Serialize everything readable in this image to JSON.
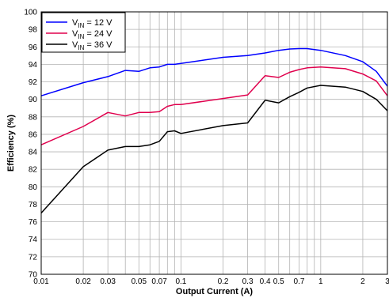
{
  "chart_data": {
    "type": "line",
    "xscale": "log",
    "xlabel": "Output Current (A)",
    "ylabel": "Efficiency (%)",
    "xlim": [
      0.01,
      3
    ],
    "ylim": [
      70,
      100
    ],
    "grid": true,
    "legend_position": "top-left",
    "x_ticks": [
      0.01,
      0.02,
      0.03,
      0.05,
      0.07,
      0.1,
      0.2,
      0.3,
      0.4,
      0.5,
      0.7,
      1,
      2,
      3
    ],
    "x_tick_labels": [
      "0.01",
      "0.02",
      "0.03",
      "0.05",
      "0.07",
      "0.1",
      "0.2",
      "0.3",
      "0.4",
      "0.5",
      "0.7",
      "1",
      "2",
      "3"
    ],
    "y_ticks": [
      70,
      72,
      74,
      76,
      78,
      80,
      82,
      84,
      86,
      88,
      90,
      92,
      94,
      96,
      98,
      100
    ],
    "y_tick_labels": [
      "70",
      "72",
      "74",
      "76",
      "78",
      "80",
      "82",
      "84",
      "86",
      "88",
      "90",
      "92",
      "94",
      "96",
      "98",
      "100"
    ],
    "series": [
      {
        "name_main": "V",
        "name_sub": "IN",
        "name_rest": " = 12 V",
        "color": "#0000ff",
        "x": [
          0.01,
          0.02,
          0.03,
          0.04,
          0.05,
          0.06,
          0.07,
          0.08,
          0.09,
          0.1,
          0.2,
          0.3,
          0.4,
          0.5,
          0.6,
          0.7,
          0.8,
          1,
          1.5,
          2,
          2.5,
          3
        ],
        "y": [
          90.4,
          91.9,
          92.6,
          93.3,
          93.2,
          93.6,
          93.7,
          94.0,
          94.0,
          94.1,
          94.8,
          95.0,
          95.3,
          95.6,
          95.75,
          95.8,
          95.8,
          95.6,
          95.0,
          94.3,
          93.2,
          91.5
        ]
      },
      {
        "name_main": "V",
        "name_sub": "IN",
        "name_rest": " = 24 V",
        "color": "#e0004d",
        "x": [
          0.01,
          0.02,
          0.03,
          0.04,
          0.05,
          0.06,
          0.07,
          0.08,
          0.09,
          0.1,
          0.2,
          0.3,
          0.4,
          0.5,
          0.6,
          0.7,
          0.8,
          1,
          1.5,
          2,
          2.5,
          3
        ],
        "y": [
          84.8,
          86.9,
          88.5,
          88.1,
          88.5,
          88.5,
          88.6,
          89.2,
          89.4,
          89.4,
          90.1,
          90.5,
          92.7,
          92.5,
          93.1,
          93.4,
          93.6,
          93.7,
          93.5,
          92.9,
          92.1,
          90.4
        ]
      },
      {
        "name_main": "V",
        "name_sub": "IN",
        "name_rest": " = 36 V",
        "color": "#000000",
        "x": [
          0.01,
          0.02,
          0.03,
          0.04,
          0.05,
          0.06,
          0.07,
          0.08,
          0.09,
          0.1,
          0.2,
          0.3,
          0.4,
          0.5,
          0.6,
          0.7,
          0.8,
          1,
          1.5,
          2,
          2.5,
          3
        ],
        "y": [
          77.0,
          82.3,
          84.2,
          84.6,
          84.6,
          84.8,
          85.2,
          86.3,
          86.4,
          86.1,
          87.0,
          87.3,
          89.9,
          89.6,
          90.3,
          90.8,
          91.3,
          91.6,
          91.4,
          90.9,
          90.0,
          88.7
        ]
      }
    ]
  }
}
